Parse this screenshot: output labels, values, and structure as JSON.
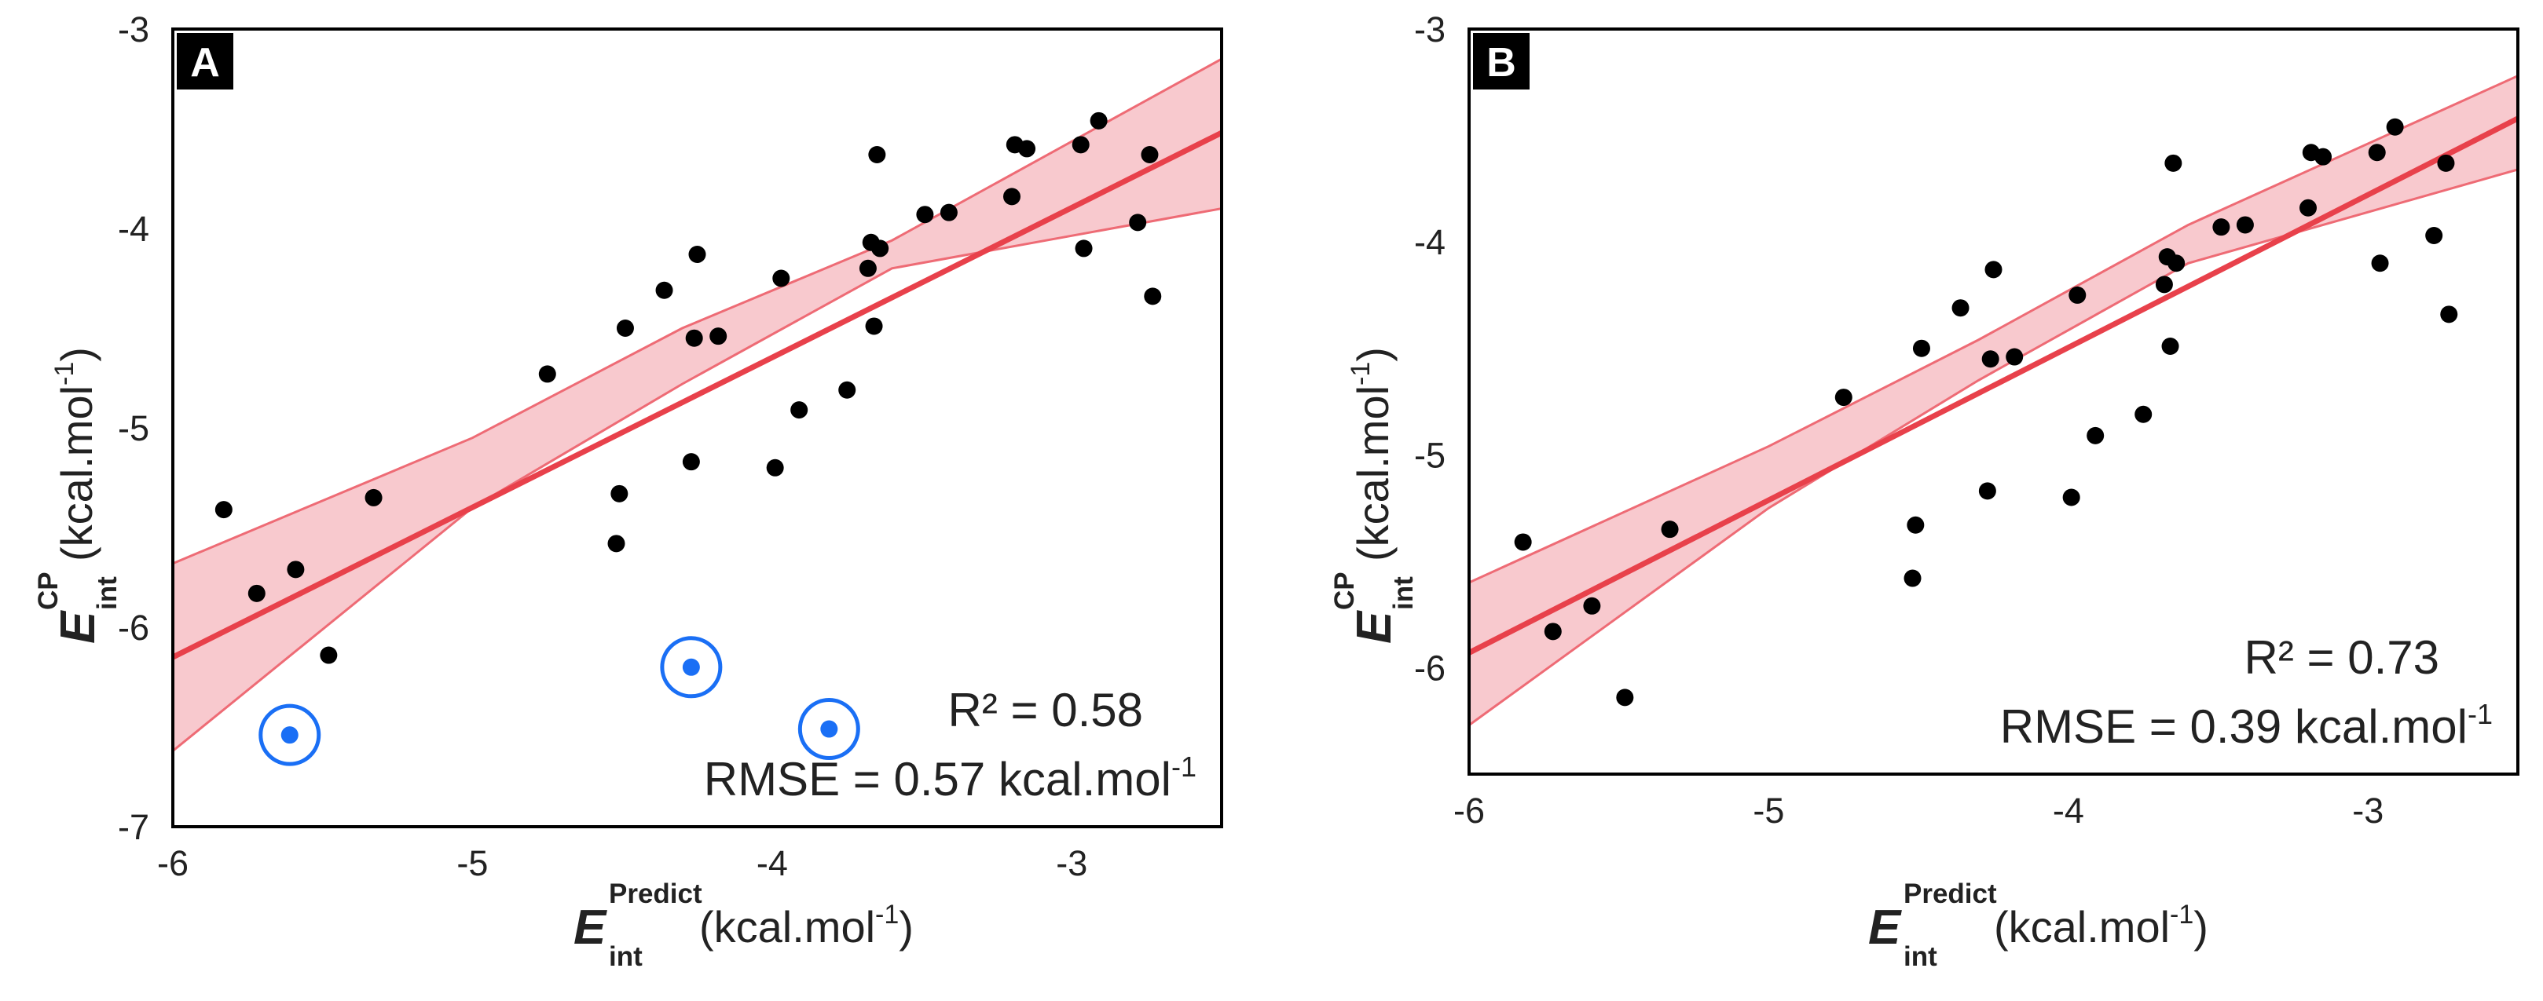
{
  "colors": {
    "point": "#000000",
    "outlier": "#1a6ff5",
    "fit_line": "#e8414b",
    "band_fill": "#f8c9ce",
    "band_edge": "#ee6b75",
    "frame": "#000000"
  },
  "chart_data": [
    {
      "panel": "A",
      "type": "scatter",
      "xlabel": {
        "main": "E",
        "sup": "Predict",
        "sub": "int",
        "unit": "(kcal.mol",
        "unit_sup": "-1",
        "unit_close": ")"
      },
      "ylabel": {
        "main": "E",
        "sup": "CP",
        "sub": "int",
        "unit": "(kcal.mol",
        "unit_sup": "-1",
        "unit_close": ")"
      },
      "xlim": [
        -6,
        -2.5
      ],
      "ylim": [
        -7,
        -3
      ],
      "xticks": [
        "-6",
        "-5",
        "-4",
        "-3"
      ],
      "xtick_values": [
        -6,
        -5,
        -4,
        -3
      ],
      "yticks": [
        "-3",
        "-4",
        "-5",
        "-6",
        "-7"
      ],
      "ytick_values": [
        -3,
        -4,
        -5,
        -6,
        -7
      ],
      "stats": {
        "r2_label": "R² = 0.58",
        "rmse_label": "RMSE = 0.57 kcal.mol",
        "rmse_sup": "-1"
      },
      "fit": {
        "x": [
          -6,
          -2.5
        ],
        "y": [
          -6.15,
          -3.52
        ]
      },
      "band": {
        "x": [
          -6,
          -5,
          -4.3,
          -3.6,
          -2.5
        ],
        "upper": [
          -5.68,
          -5.05,
          -4.5,
          -4.06,
          -3.15
        ],
        "lower": [
          -6.62,
          -5.4,
          -4.78,
          -4.2,
          -3.9
        ]
      },
      "points": {
        "x": [
          -5.83,
          -5.72,
          -5.59,
          -5.48,
          -5.33,
          -4.75,
          -4.52,
          -4.51,
          -4.49,
          -4.36,
          -4.27,
          -4.26,
          -4.25,
          -4.18,
          -3.99,
          -3.97,
          -3.91,
          -3.75,
          -3.68,
          -3.67,
          -3.66,
          -3.65,
          -3.64,
          -3.49,
          -3.41,
          -3.2,
          -3.19,
          -3.15,
          -2.97,
          -2.96,
          -2.91,
          -2.78,
          -2.74,
          -2.73
        ],
        "y": [
          -5.41,
          -5.83,
          -5.71,
          -6.14,
          -5.35,
          -4.73,
          -5.58,
          -5.33,
          -4.5,
          -4.31,
          -5.17,
          -4.55,
          -4.13,
          -4.54,
          -5.2,
          -4.25,
          -4.91,
          -4.81,
          -4.2,
          -4.07,
          -4.49,
          -3.63,
          -4.1,
          -3.93,
          -3.92,
          -3.84,
          -3.58,
          -3.6,
          -3.58,
          -4.1,
          -3.46,
          -3.97,
          -3.63,
          -4.34
        ]
      },
      "outliers": {
        "x": [
          -5.61,
          -4.27,
          -3.81
        ],
        "y": [
          -6.54,
          -6.2,
          -6.51
        ]
      }
    },
    {
      "panel": "B",
      "type": "scatter",
      "xlabel": {
        "main": "E",
        "sup": "Predict",
        "sub": "int",
        "unit": "(kcal.mol",
        "unit_sup": "-1",
        "unit_close": ")"
      },
      "ylabel": {
        "main": "E",
        "sup": "CP",
        "sub": "int",
        "unit": "(kcal.mol",
        "unit_sup": "-1",
        "unit_close": ")"
      },
      "xlim": [
        -6,
        -2.5
      ],
      "ylim": [
        -6.5,
        -3
      ],
      "xticks": [
        "-6",
        "-5",
        "-4",
        "-3"
      ],
      "xtick_values": [
        -6,
        -5,
        -4,
        -3
      ],
      "yticks": [
        "-3",
        "-4",
        "-5",
        "-6"
      ],
      "ytick_values": [
        -3,
        -4,
        -5,
        -6
      ],
      "stats": {
        "r2_label": "R² = 0.73",
        "rmse_label": "RMSE = 0.39 kcal.mol",
        "rmse_sup": "-1"
      },
      "fit": {
        "x": [
          -6,
          -2.5
        ],
        "y": [
          -5.93,
          -3.42
        ]
      },
      "band": {
        "x": [
          -6,
          -5,
          -4.3,
          -3.6,
          -2.5
        ],
        "upper": [
          -5.6,
          -4.96,
          -4.46,
          -3.92,
          -3.22
        ],
        "lower": [
          -6.27,
          -5.25,
          -4.65,
          -4.1,
          -3.66
        ]
      },
      "points": {
        "x": [
          -5.82,
          -5.72,
          -5.59,
          -5.48,
          -5.33,
          -4.75,
          -4.52,
          -4.51,
          -4.49,
          -4.36,
          -4.27,
          -4.26,
          -4.25,
          -4.18,
          -3.99,
          -3.97,
          -3.91,
          -3.75,
          -3.68,
          -3.67,
          -3.66,
          -3.65,
          -3.64,
          -3.49,
          -3.41,
          -3.2,
          -3.19,
          -3.15,
          -2.97,
          -2.96,
          -2.91,
          -2.78,
          -2.74,
          -2.73
        ],
        "y": [
          -5.41,
          -5.83,
          -5.71,
          -6.14,
          -5.35,
          -4.73,
          -5.58,
          -5.33,
          -4.5,
          -4.31,
          -5.17,
          -4.55,
          -4.13,
          -4.54,
          -5.2,
          -4.25,
          -4.91,
          -4.81,
          -4.2,
          -4.07,
          -4.49,
          -3.63,
          -4.1,
          -3.93,
          -3.92,
          -3.84,
          -3.58,
          -3.6,
          -3.58,
          -4.1,
          -3.46,
          -3.97,
          -3.63,
          -4.34
        ]
      }
    }
  ]
}
